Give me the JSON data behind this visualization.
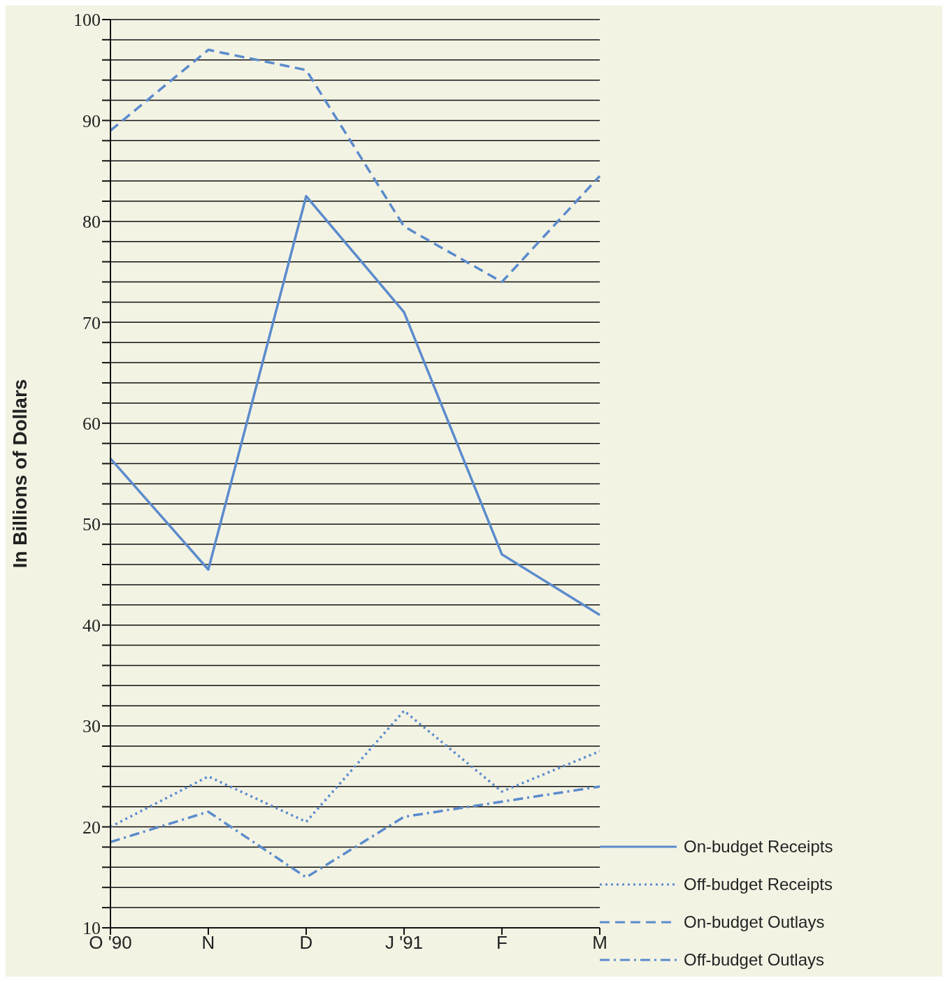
{
  "chart_data": {
    "type": "line",
    "ylabel": "In Billions of Dollars",
    "categories": [
      "O '90",
      "N",
      "D",
      "J '91",
      "F",
      "M"
    ],
    "series": [
      {
        "name": "On-budget Receipts",
        "color": "#5b8bcc",
        "line_style": "solid",
        "values": [
          56.5,
          45.5,
          82.5,
          71,
          47,
          41
        ]
      },
      {
        "name": "Off-budget Receipts",
        "color": "#5b8bcc",
        "line_style": "dotted",
        "values": [
          20,
          25,
          20.5,
          31.5,
          23.5,
          27.5
        ]
      },
      {
        "name": "On-budget Outlays",
        "color": "#5b8bcc",
        "line_style": "dashed",
        "values": [
          89,
          97,
          95,
          79.5,
          74,
          84.5
        ]
      },
      {
        "name": "Off-budget Outlays",
        "color": "#5b8bcc",
        "line_style": "dashdot",
        "values": [
          18.5,
          21.5,
          15,
          21,
          22.5,
          24
        ]
      }
    ],
    "ylim": [
      10,
      100
    ],
    "yticks": [
      10,
      {
        "value": 12,
        "label": null
      },
      {
        "value": 14,
        "label": null
      },
      {
        "value": 16,
        "label": null
      },
      {
        "value": 18,
        "label": null
      },
      20,
      {
        "value": 22,
        "label": null
      },
      {
        "value": 24,
        "label": null
      },
      {
        "value": 26,
        "label": null
      },
      {
        "value": 28,
        "label": null
      },
      30,
      {
        "value": 32,
        "label": null
      },
      {
        "value": 34,
        "label": null
      },
      {
        "value": 36,
        "label": null
      },
      {
        "value": 38,
        "label": null
      },
      40,
      {
        "value": 42,
        "label": null
      },
      {
        "value": 44,
        "label": null
      },
      {
        "value": 46,
        "label": null
      },
      {
        "value": 48,
        "label": null
      },
      50,
      {
        "value": 52,
        "label": null
      },
      {
        "value": 54,
        "label": null
      },
      {
        "value": 56,
        "label": null
      },
      {
        "value": 58,
        "label": null
      },
      60,
      {
        "value": 62,
        "label": null
      },
      {
        "value": 64,
        "label": null
      },
      {
        "value": 66,
        "label": null
      },
      {
        "value": 68,
        "label": null
      },
      70,
      {
        "value": 72,
        "label": null
      },
      {
        "value": 74,
        "label": null
      },
      {
        "value": 76,
        "label": null
      },
      {
        "value": 78,
        "label": null
      },
      80,
      {
        "value": 82,
        "label": null
      },
      {
        "value": 84,
        "label": null
      },
      {
        "value": 86,
        "label": null
      },
      {
        "value": 88,
        "label": null
      },
      90,
      {
        "value": 92,
        "label": null
      },
      {
        "value": 94,
        "label": null
      },
      {
        "value": 96,
        "label": null
      },
      {
        "value": 98,
        "label": null
      },
      100
    ],
    "grid": "y",
    "legend": "bottom right",
    "marker": "none"
  }
}
